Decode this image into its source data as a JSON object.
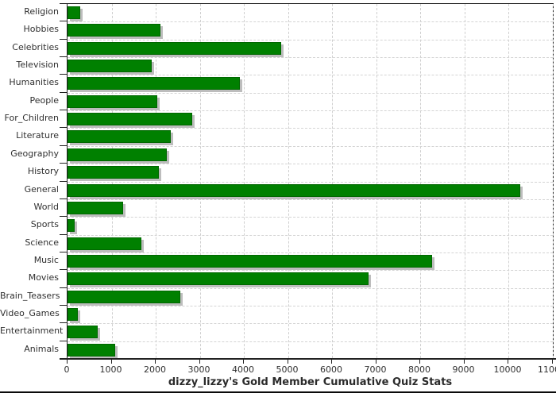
{
  "chart_data": {
    "type": "bar",
    "orientation": "horizontal",
    "title": "dizzy_lizzy's Gold Member Cumulative Quiz Stats",
    "categories": [
      "Religion",
      "Hobbies",
      "Celebrities",
      "Television",
      "Humanities",
      "People",
      "For_Children",
      "Literature",
      "Geography",
      "History",
      "General",
      "World",
      "Sports",
      "Science",
      "Music",
      "Movies",
      "Brain_Teasers",
      "Video_Games",
      "Entertainment",
      "Animals"
    ],
    "values": [
      280,
      2110,
      4850,
      1910,
      3910,
      2040,
      2830,
      2340,
      2250,
      2070,
      10270,
      1260,
      160,
      1680,
      8270,
      6830,
      2560,
      230,
      690,
      1080
    ],
    "xlabel": "",
    "ylabel": "",
    "xlim": [
      0,
      11000
    ],
    "xtick_step": 1000,
    "xtick_labels": [
      "0",
      "1000",
      "2000",
      "3000",
      "4000",
      "5000",
      "6000",
      "7000",
      "8000",
      "9000",
      "10000",
      "11000"
    ],
    "grid": "dashed, vertical at every 1000 and horizontal at category boundaries",
    "legend_position": "none",
    "colors": {
      "bar_fill": "#008000",
      "bar_border": "#006700",
      "bar_shadow": "#bdbdbd",
      "gridline": "#d0d0d0",
      "axis": "#222222",
      "label_text": "#303030",
      "title_text": "#2b2b2b",
      "background": "#ffffff"
    }
  }
}
